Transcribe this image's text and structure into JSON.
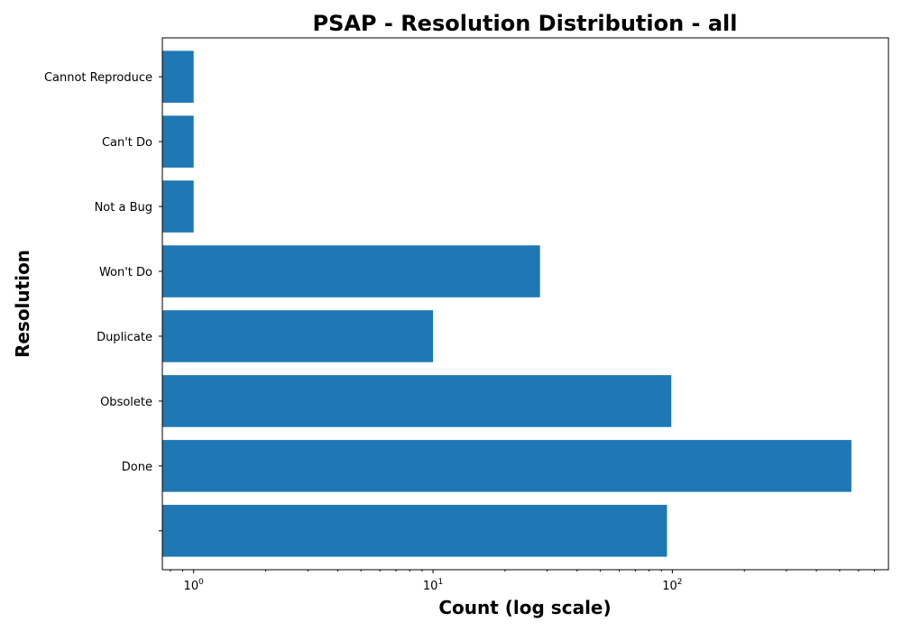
{
  "chart_data": {
    "type": "bar",
    "orientation": "horizontal",
    "title": "PSAP - Resolution Distribution - all",
    "xlabel": "Count (log scale)",
    "ylabel": "Resolution",
    "x_scale": "log",
    "xlim": [
      0.74,
      800
    ],
    "x_ticks": [
      {
        "value": 1,
        "base": "10",
        "exp": "0"
      },
      {
        "value": 10,
        "base": "10",
        "exp": "1"
      },
      {
        "value": 100,
        "base": "10",
        "exp": "2"
      }
    ],
    "categories": [
      "",
      "Done",
      "Obsolete",
      "Duplicate",
      "Won't Do",
      "Not a Bug",
      "Can't Do",
      "Cannot Reproduce"
    ],
    "values": [
      95,
      560,
      99,
      10,
      28,
      1,
      1,
      1
    ],
    "grid": false,
    "bar_color": "#1f77b4"
  }
}
